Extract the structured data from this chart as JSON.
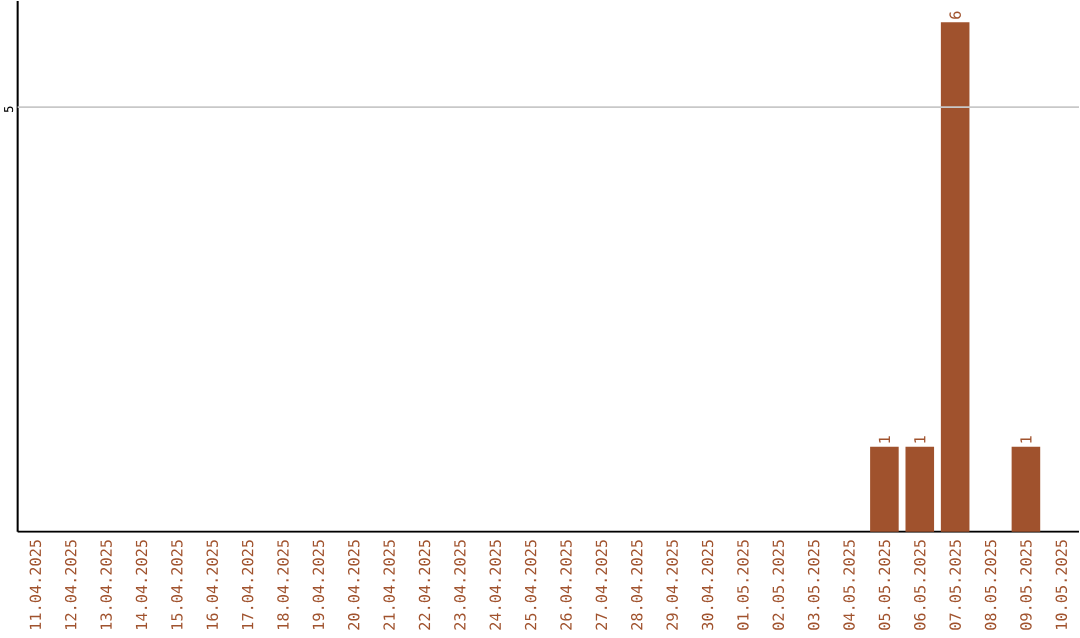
{
  "chart_data": {
    "type": "bar",
    "categories": [
      "11.04.2025",
      "12.04.2025",
      "13.04.2025",
      "14.04.2025",
      "15.04.2025",
      "16.04.2025",
      "17.04.2025",
      "18.04.2025",
      "19.04.2025",
      "20.04.2025",
      "21.04.2025",
      "22.04.2025",
      "23.04.2025",
      "24.04.2025",
      "25.04.2025",
      "26.04.2025",
      "27.04.2025",
      "28.04.2025",
      "29.04.2025",
      "30.04.2025",
      "01.05.2025",
      "02.05.2025",
      "03.05.2025",
      "04.05.2025",
      "05.05.2025",
      "06.05.2025",
      "07.05.2025",
      "08.05.2025",
      "09.05.2025",
      "10.05.2025"
    ],
    "values": [
      null,
      null,
      null,
      null,
      null,
      null,
      null,
      null,
      null,
      null,
      null,
      null,
      null,
      null,
      null,
      null,
      null,
      null,
      null,
      null,
      null,
      null,
      null,
      null,
      1,
      1,
      6,
      null,
      1,
      null
    ],
    "data_labels": true,
    "color": "#a0522d",
    "ylim": [
      0,
      6.25
    ],
    "ref_lines": [
      {
        "axis": "y",
        "value": 5,
        "label": "5",
        "color": "#c8c8c8"
      }
    ]
  }
}
